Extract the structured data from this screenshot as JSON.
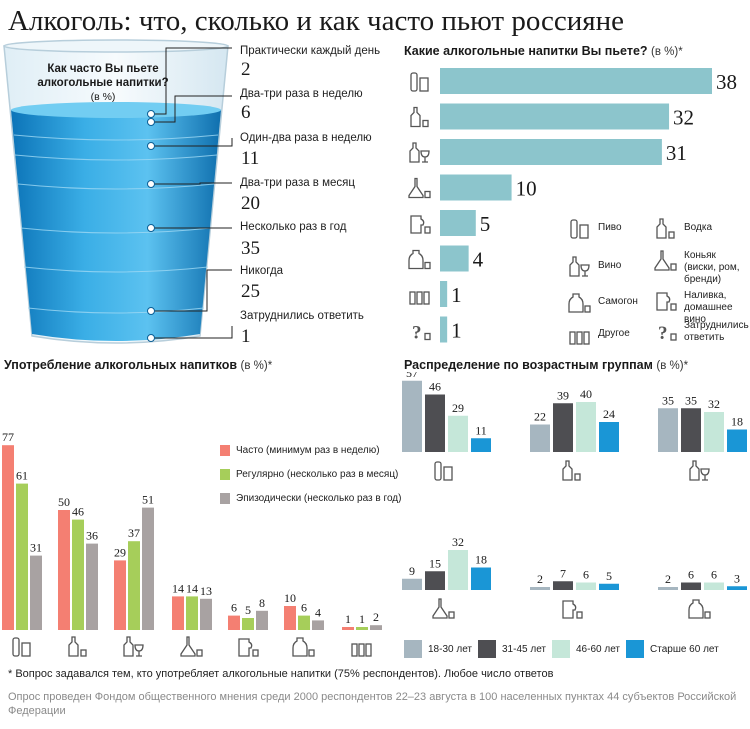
{
  "title": "Алкоголь: что, сколько и как часто пьют россияне",
  "glass": {
    "question_line1": "Как часто Вы пьете",
    "question_line2": "алкогольные напитки?",
    "unit": "(в %)"
  },
  "frequency": [
    {
      "label": "Практически каждый день",
      "value": "2"
    },
    {
      "label": "Два-три раза в неделю",
      "value": "6"
    },
    {
      "label": "Один-два раза в неделю",
      "value": "11"
    },
    {
      "label": "Два-три раза в месяц",
      "value": "20"
    },
    {
      "label": "Несколько раз в год",
      "value": "35"
    },
    {
      "label": "Никогда",
      "value": "25"
    },
    {
      "label": "Затруднились ответить",
      "value": "1"
    }
  ],
  "drinks_section": {
    "title": "Какие алкогольные напитки Вы пьете?",
    "unit": "(в %)*"
  },
  "usage_section": {
    "title": "Употребление алкогольных напитков",
    "unit": "(в %)*"
  },
  "age_section": {
    "title": "Распределение по возрастным группам",
    "unit": "(в %)*"
  },
  "drink_legend": [
    {
      "icon": "beer-icon",
      "label": "Пиво"
    },
    {
      "icon": "vodka-icon",
      "label": "Водка"
    },
    {
      "icon": "wine-icon",
      "label": "Вино"
    },
    {
      "icon": "cognac-icon",
      "label": "Коньяк (виски, ром, бренди)"
    },
    {
      "icon": "moonshine-icon",
      "label": "Самогон"
    },
    {
      "icon": "liqueur-icon",
      "label": "Наливка, домашнее вино"
    },
    {
      "icon": "other-icon",
      "label": "Другое"
    },
    {
      "icon": "unsure-icon",
      "label": "Затруднились ответить"
    }
  ],
  "usage_legend": [
    {
      "label": "Часто (минимум раз в неделю)",
      "color": "#f47f72"
    },
    {
      "label": "Регулярно (несколько раз в месяц)",
      "color": "#a6ce5a"
    },
    {
      "label": "Эпизодически (несколько раз в год)",
      "color": "#a8a2a2"
    }
  ],
  "age_legend": [
    {
      "label": "18-30 лет",
      "color": "#a6b6c0"
    },
    {
      "label": "31-45 лет",
      "color": "#4e4e52"
    },
    {
      "label": "46-60 лет",
      "color": "#c5e7d9"
    },
    {
      "label": "Старше 60 лет",
      "color": "#1a96d6"
    }
  ],
  "footnote": "* Вопрос задавался тем, кто употребляет алкогольные напитки (75% респондентов). Любое число ответов",
  "source": "Опрос проведен Фондом общественного мнения среди 2000 респондентов 22–23 августа в 100 населенных пунктах 44 субъектов Российской Федерации",
  "chart_data": [
    {
      "type": "bar",
      "orientation": "horizontal",
      "title": "Какие алкогольные напитки Вы пьете?",
      "categories": [
        "Пиво",
        "Водка",
        "Вино",
        "Коньяк (виски, ром, бренди)",
        "Наливка, домашнее вино",
        "Самогон",
        "Другое",
        "Затруднились ответить"
      ],
      "values": [
        38,
        32,
        31,
        10,
        5,
        4,
        1,
        1
      ],
      "color": "#8cc5cc"
    },
    {
      "type": "bar",
      "title": "Употребление алкогольных напитков",
      "categories": [
        "Пиво",
        "Водка",
        "Вино",
        "Коньяк (виски, ром, бренди)",
        "Наливка, домашнее вино",
        "Самогон",
        "Другое"
      ],
      "series": [
        {
          "name": "Часто (минимум раз в неделю)",
          "values": [
            77,
            50,
            29,
            14,
            6,
            10,
            1
          ],
          "color": "#f47f72"
        },
        {
          "name": "Регулярно (несколько раз в месяц)",
          "values": [
            61,
            46,
            37,
            14,
            5,
            6,
            1
          ],
          "color": "#a6ce5a"
        },
        {
          "name": "Эпизодически (несколько раз в год)",
          "values": [
            31,
            36,
            51,
            13,
            8,
            4,
            2
          ],
          "color": "#a8a2a2"
        }
      ]
    },
    {
      "type": "bar",
      "title": "Распределение по возрастным группам",
      "categories": [
        "Пиво",
        "Водка",
        "Вино",
        "Коньяк (виски, ром, бренди)",
        "Наливка, домашнее вино",
        "Самогон"
      ],
      "series": [
        {
          "name": "18-30 лет",
          "values": [
            57,
            22,
            35,
            9,
            2,
            2
          ],
          "color": "#a6b6c0"
        },
        {
          "name": "31-45 лет",
          "values": [
            46,
            39,
            35,
            15,
            7,
            6
          ],
          "color": "#4e4e52"
        },
        {
          "name": "46-60 лет",
          "values": [
            29,
            40,
            32,
            32,
            6,
            6
          ],
          "color": "#c5e7d9"
        },
        {
          "name": "Старше 60 лет",
          "values": [
            11,
            24,
            18,
            18,
            5,
            3
          ],
          "color": "#1a96d6"
        }
      ]
    }
  ]
}
